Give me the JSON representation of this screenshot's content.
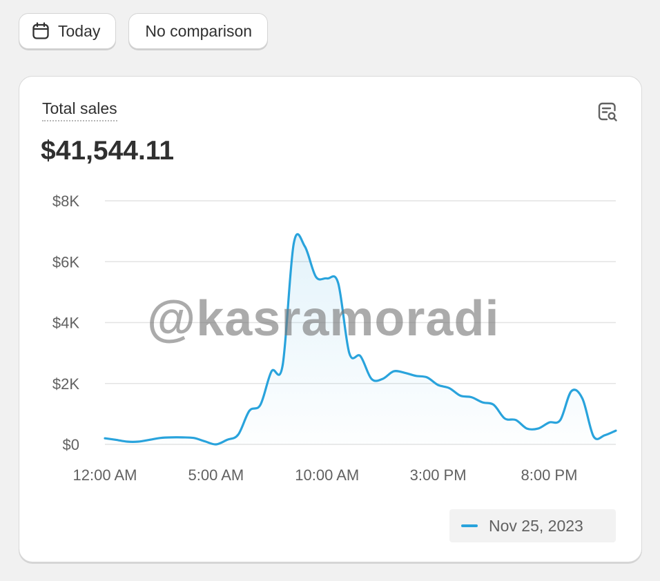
{
  "toolbar": {
    "date_label": "Today",
    "date_icon": "calendar-icon",
    "comparison_label": "No comparison"
  },
  "card": {
    "title": "Total sales",
    "value": "$41,544.11",
    "action_icon": "report-search-icon"
  },
  "watermark": "@kasramoradi",
  "colors": {
    "line": "#29a3dc",
    "grid": "#e3e3e3",
    "background": "#f1f1f1"
  },
  "chart_data": {
    "type": "area",
    "title": "",
    "xlabel": "",
    "ylabel": "",
    "ylim": [
      0,
      8000
    ],
    "yticks": [
      {
        "value": 0,
        "label": "$0"
      },
      {
        "value": 2000,
        "label": "$2K"
      },
      {
        "value": 4000,
        "label": "$4K"
      },
      {
        "value": 6000,
        "label": "$6K"
      },
      {
        "value": 8000,
        "label": "$8K"
      }
    ],
    "xlim": [
      0,
      23
    ],
    "xticks": [
      {
        "value": 0,
        "label": "12:00 AM"
      },
      {
        "value": 5,
        "label": "5:00 AM"
      },
      {
        "value": 10,
        "label": "10:00 AM"
      },
      {
        "value": 15,
        "label": "3:00 PM"
      },
      {
        "value": 20,
        "label": "8:00 PM"
      }
    ],
    "grid": true,
    "legend_position": "bottom-right",
    "series": [
      {
        "name": "Nov 25, 2023",
        "x": [
          0,
          0.5,
          1,
          1.5,
          2,
          2.5,
          3,
          3.5,
          4,
          4.5,
          5,
          5.5,
          6,
          6.5,
          7,
          7.5,
          8,
          8.5,
          9,
          9.5,
          10,
          10.5,
          11,
          11.5,
          12,
          12.5,
          13,
          13.5,
          14,
          14.5,
          15,
          15.5,
          16,
          16.5,
          17,
          17.5,
          18,
          18.5,
          19,
          19.5,
          20,
          20.5,
          21,
          21.5,
          22,
          22.5,
          23
        ],
        "y": [
          200,
          150,
          90,
          90,
          150,
          210,
          230,
          230,
          210,
          100,
          0,
          150,
          320,
          1100,
          1300,
          2400,
          2600,
          6600,
          6500,
          5500,
          5450,
          5300,
          3000,
          2900,
          2150,
          2150,
          2400,
          2350,
          2250,
          2200,
          1950,
          1850,
          1600,
          1550,
          1380,
          1300,
          850,
          800,
          520,
          520,
          720,
          800,
          1750,
          1500,
          260,
          300,
          450
        ]
      }
    ]
  }
}
